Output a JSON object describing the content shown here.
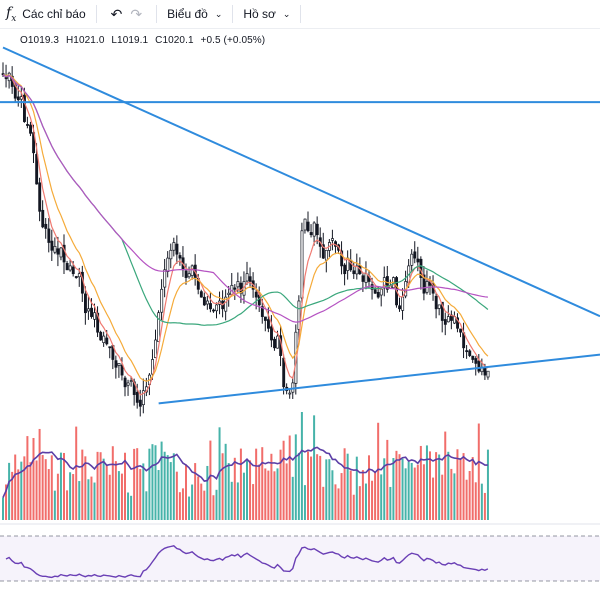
{
  "toolbar": {
    "indicators_label": "Các chỉ báo",
    "chart_type_label": "Biểu đồ",
    "profile_label": "Hồ sơ",
    "icons": [
      "fx-icon",
      "undo-icon",
      "redo-icon",
      "chevron-down-icon"
    ]
  },
  "ohlc": {
    "open": "O1019.3",
    "high": "H1021.0",
    "low": "L1019.1",
    "close": "C1020.1",
    "change": "+0.5 (+0.05%)"
  },
  "colors": {
    "up": "#26a69a",
    "down": "#ef5350",
    "candle": "#131722",
    "trendline": "#2f8bdd",
    "ma_fast": "#f07b72",
    "ma_mid": "#f5ab3a",
    "ma_slow": "#3aa77c",
    "ma_long": "#b553c2",
    "volume_ma": "#5b3ea6",
    "rsi": "#6a3fb5"
  },
  "chart_data": {
    "type": "candlestick",
    "price_path": [
      1016.0,
      1015.5,
      1016.2,
      1014.5,
      1013.0,
      1012.8,
      1013.2,
      1010.0,
      1009.5,
      1008.5,
      1006.0,
      1002.0,
      998.5,
      996.5,
      996.3,
      994.5,
      993.5,
      994.0,
      993.0,
      993.8,
      992.0,
      991.0,
      991.5,
      990.5,
      990.0,
      990.5,
      988.0,
      985.5,
      986.0,
      985.0,
      985.5,
      983.0,
      982.0,
      982.5,
      981.5,
      981.0,
      979.5,
      978.5,
      979.0,
      977.5,
      976.0,
      976.5,
      976.8,
      975.0,
      974.0,
      973.5,
      975.5,
      976.0,
      977.5,
      979.5,
      982.0,
      985.5,
      988.5,
      991.0,
      992.5,
      993.5,
      994.5,
      993.0,
      992.5,
      991.0,
      990.0,
      990.5,
      991.5,
      990.0,
      988.5,
      987.5,
      986.5,
      987.0,
      986.0,
      985.8,
      986.5,
      987.0,
      986.0,
      987.5,
      988.0,
      989.0,
      988.5,
      989.5,
      988.0,
      989.5,
      990.5,
      989.5,
      988.5,
      987.5,
      986.5,
      985.0,
      984.5,
      983.5,
      982.0,
      981.0,
      982.5,
      980.0,
      976.0,
      975.5,
      975.2,
      976.5,
      983.0,
      987.0,
      996.0,
      997.5,
      996.0,
      995.5,
      997.0,
      995.5,
      994.0,
      992.5,
      993.5,
      994.5,
      995.0,
      994.0,
      993.5,
      991.5,
      990.5,
      992.5,
      991.0,
      990.5,
      991.5,
      990.5,
      989.5,
      990.5,
      989.5,
      988.5,
      988.0,
      987.5,
      988.5,
      990.0,
      988.5,
      989.0,
      990.0,
      986.5,
      986.0,
      987.5,
      989.5,
      991.5,
      993.0,
      992.5,
      992.0,
      990.0,
      988.0,
      989.5,
      989.0,
      988.0,
      986.0,
      986.5,
      984.5,
      984.0,
      985.0,
      984.5,
      985.0,
      983.5,
      983.0,
      981.0,
      980.5,
      980.0,
      979.5,
      979.0,
      978.0,
      978.5,
      977.5,
      978.0
    ],
    "resistance_trendline": {
      "from": [
        0,
        1019.5
      ],
      "to": [
        179,
        988.0
      ]
    },
    "horizontal_line": 1012.5,
    "support_trendline": {
      "from": [
        33,
        974.0
      ],
      "to": [
        179,
        979.5
      ]
    },
    "panes": [
      "price",
      "volume",
      "rsi"
    ],
    "moving_averages": [
      "ma_fast",
      "ma_mid",
      "ma_slow",
      "ma_long"
    ],
    "grid": false
  }
}
